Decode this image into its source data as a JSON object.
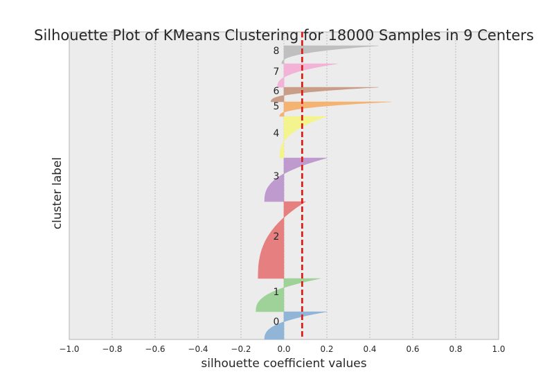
{
  "chart_data": {
    "type": "area",
    "title": "Silhouette Plot of KMeans Clustering for 18000 Samples in 9 Centers",
    "xlabel": "silhouette coefficient values",
    "ylabel": "cluster label",
    "xlim": [
      -1.0,
      1.0
    ],
    "x_ticks": [
      "−1.0",
      "−0.8",
      "−0.6",
      "−0.4",
      "−0.2",
      "0.0",
      "0.2",
      "0.4",
      "0.6",
      "0.8",
      "1.0"
    ],
    "grid": "vertical",
    "background_color": "#eaeaf2",
    "average_silhouette": 0.085,
    "average_line_color": "#e3120b",
    "cluster_labels": [
      "0",
      "1",
      "2",
      "3",
      "4",
      "5",
      "6",
      "7",
      "8"
    ],
    "clusters": [
      {
        "label": "0",
        "color": "#8cb2d6",
        "min": -0.09,
        "max": 0.2
      },
      {
        "label": "1",
        "color": "#9bd195",
        "min": -0.13,
        "max": 0.17
      },
      {
        "label": "2",
        "color": "#e67a7a",
        "min": -0.12,
        "max": 0.1
      },
      {
        "label": "3",
        "color": "#bc96cc",
        "min": -0.09,
        "max": 0.2
      },
      {
        "label": "4",
        "color": "#f4f48a",
        "min": -0.02,
        "max": 0.2
      },
      {
        "label": "5",
        "color": "#f4b06c",
        "min": -0.02,
        "max": 0.5
      },
      {
        "label": "6",
        "color": "#c79a83",
        "min": -0.06,
        "max": 0.44
      },
      {
        "label": "7",
        "color": "#f2b0d6",
        "min": -0.03,
        "max": 0.25
      },
      {
        "label": "8",
        "color": "#bdbdbd",
        "min": -0.01,
        "max": 0.44
      }
    ]
  }
}
